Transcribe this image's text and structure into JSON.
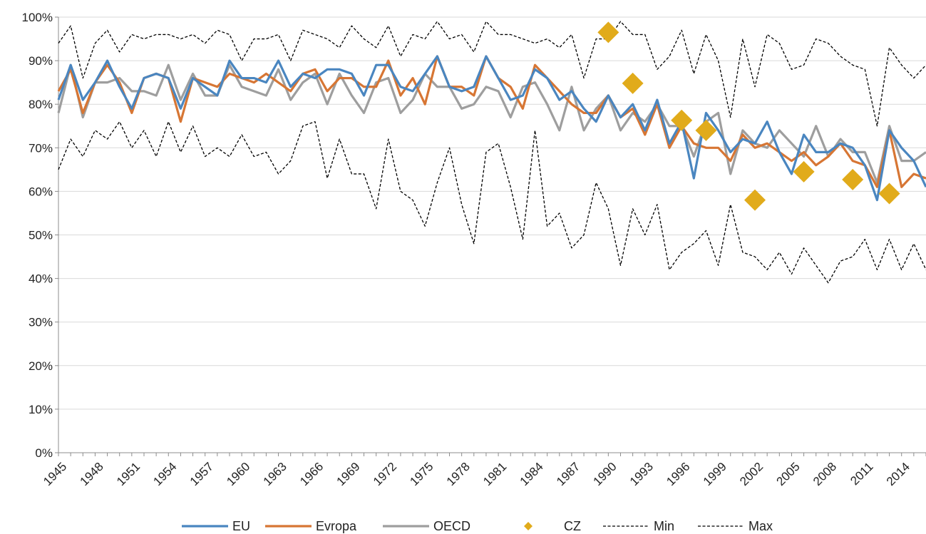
{
  "chart_data": {
    "type": "line",
    "x": [
      1945,
      1946,
      1947,
      1948,
      1949,
      1950,
      1951,
      1952,
      1953,
      1954,
      1955,
      1956,
      1957,
      1958,
      1959,
      1960,
      1961,
      1962,
      1963,
      1964,
      1965,
      1966,
      1967,
      1968,
      1969,
      1970,
      1971,
      1972,
      1973,
      1974,
      1975,
      1976,
      1977,
      1978,
      1979,
      1980,
      1981,
      1982,
      1983,
      1984,
      1985,
      1986,
      1987,
      1988,
      1989,
      1990,
      1991,
      1992,
      1993,
      1994,
      1995,
      1996,
      1997,
      1998,
      1999,
      2000,
      2001,
      2002,
      2003,
      2004,
      2005,
      2006,
      2007,
      2008,
      2009,
      2010,
      2011,
      2012,
      2013,
      2014,
      2015,
      2016
    ],
    "x_tick_labels": [
      "1945",
      "1948",
      "1951",
      "1954",
      "1957",
      "1960",
      "1963",
      "1966",
      "1969",
      "1972",
      "1975",
      "1978",
      "1981",
      "1984",
      "1987",
      "1990",
      "1993",
      "1996",
      "1999",
      "2002",
      "2005",
      "2008",
      "2011",
      "2014"
    ],
    "x_tick_values": [
      1945,
      1948,
      1951,
      1954,
      1957,
      1960,
      1963,
      1966,
      1969,
      1972,
      1975,
      1978,
      1981,
      1984,
      1987,
      1990,
      1993,
      1996,
      1999,
      2002,
      2005,
      2008,
      2011,
      2014
    ],
    "y_tick_labels": [
      "0%",
      "10%",
      "20%",
      "30%",
      "40%",
      "50%",
      "60%",
      "70%",
      "80%",
      "90%",
      "100%"
    ],
    "ylim": [
      0,
      100
    ],
    "xlim": [
      1945,
      2016
    ],
    "grid": "horizontal",
    "legend_position": "bottom",
    "series": [
      {
        "name": "EU",
        "color": "#4a86c0",
        "style": "line",
        "values": [
          81,
          89,
          81,
          85,
          90,
          84,
          79,
          86,
          87,
          86,
          79,
          86,
          84,
          82,
          90,
          86,
          86,
          85,
          90,
          84,
          87,
          86,
          88,
          88,
          87,
          82,
          89,
          89,
          84,
          83,
          87,
          91,
          84,
          83,
          84,
          91,
          86,
          81,
          82,
          88,
          86,
          81,
          83,
          79,
          76,
          82,
          77,
          80,
          74,
          81,
          71,
          76,
          63,
          78,
          74,
          69,
          72,
          71,
          76,
          69,
          64,
          73,
          69,
          69,
          71,
          70,
          66,
          58,
          74,
          70,
          67,
          61
        ]
      },
      {
        "name": "Evropa",
        "color": "#d77634",
        "style": "line",
        "values": [
          83,
          88,
          78,
          85,
          89,
          85,
          78,
          86,
          87,
          86,
          76,
          86,
          85,
          84,
          87,
          86,
          85,
          87,
          85,
          83,
          87,
          88,
          83,
          86,
          86,
          84,
          84,
          90,
          82,
          86,
          80,
          91,
          84,
          84,
          82,
          91,
          86,
          84,
          79,
          89,
          86,
          83,
          80,
          78,
          78,
          82,
          77,
          79,
          73,
          80,
          70,
          75,
          71,
          70,
          70,
          67,
          73,
          70,
          71,
          69,
          67,
          69,
          66,
          68,
          71,
          67,
          66,
          61,
          74,
          61,
          64,
          63
        ]
      },
      {
        "name": "OECD",
        "color": "#9e9e9e",
        "style": "line",
        "values": [
          78,
          89,
          77,
          85,
          85,
          86,
          83,
          83,
          82,
          89,
          81,
          87,
          82,
          82,
          89,
          84,
          83,
          82,
          88,
          81,
          85,
          87,
          80,
          87,
          82,
          78,
          85,
          86,
          78,
          81,
          87,
          84,
          84,
          79,
          80,
          84,
          83,
          77,
          84,
          85,
          80,
          74,
          84,
          74,
          79,
          82,
          74,
          78,
          76,
          80,
          75,
          75,
          68,
          76,
          78,
          64,
          74,
          71,
          70,
          74,
          71,
          68,
          75,
          68,
          72,
          69,
          69,
          62,
          75,
          67,
          67,
          69
        ]
      },
      {
        "name": "CZ",
        "color": "#e1ab1b",
        "style": "marker",
        "points": [
          [
            1990,
            96.5
          ],
          [
            1992,
            84.8
          ],
          [
            1996,
            76.3
          ],
          [
            1998,
            74
          ],
          [
            2002,
            58
          ],
          [
            2006,
            64.5
          ],
          [
            2010,
            62.7
          ],
          [
            2013,
            59.5
          ]
        ]
      },
      {
        "name": "Min",
        "color": "#000000",
        "style": "dashed",
        "values": [
          65,
          72,
          68,
          74,
          72,
          76,
          70,
          74,
          68,
          76,
          69,
          75,
          68,
          70,
          68,
          73,
          68,
          69,
          64,
          67,
          75,
          76,
          63,
          72,
          64,
          64,
          56,
          72,
          60,
          58,
          52,
          62,
          70,
          57,
          48,
          69,
          71,
          61,
          49,
          74,
          52,
          55,
          47,
          50,
          62,
          56,
          43,
          56,
          50,
          57,
          42,
          46,
          48,
          51,
          43,
          57,
          46,
          45,
          42,
          46,
          41,
          47,
          43,
          39,
          44,
          45,
          49,
          42,
          49,
          42,
          48,
          42
        ]
      },
      {
        "name": "Max",
        "color": "#000000",
        "style": "dashed",
        "values": [
          94,
          98,
          86,
          94,
          97,
          92,
          96,
          95,
          96,
          96,
          95,
          96,
          94,
          97,
          96,
          90,
          95,
          95,
          96,
          90,
          97,
          96,
          95,
          93,
          98,
          95,
          93,
          98,
          91,
          96,
          95,
          99,
          95,
          96,
          92,
          99,
          96,
          96,
          95,
          94,
          95,
          93,
          96,
          86,
          95,
          95,
          99,
          96,
          96,
          88,
          91,
          97,
          87,
          96,
          90,
          77,
          95,
          84,
          96,
          94,
          88,
          89,
          95,
          94,
          91,
          89,
          88,
          75,
          93,
          89,
          86,
          89
        ]
      }
    ]
  }
}
